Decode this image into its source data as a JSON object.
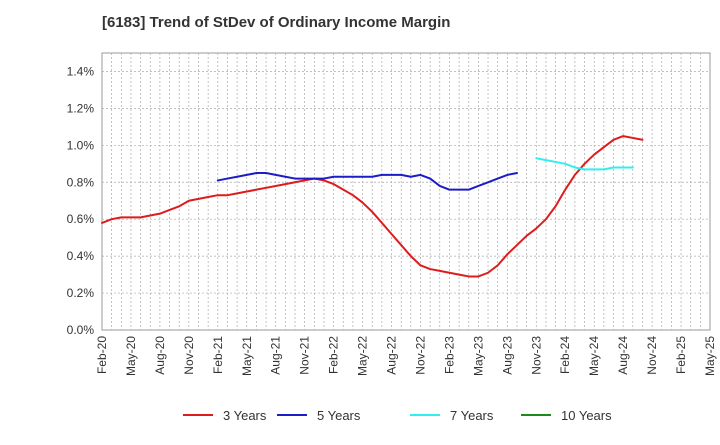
{
  "chart_data": {
    "type": "line",
    "title": "[6183]  Trend of StDev of Ordinary Income Margin",
    "xlabel": "",
    "ylabel": "",
    "x_tick_labels": [
      "Feb-20",
      "May-20",
      "Aug-20",
      "Nov-20",
      "Feb-21",
      "May-21",
      "Aug-21",
      "Nov-21",
      "Feb-22",
      "May-22",
      "Aug-22",
      "Nov-22",
      "Feb-23",
      "May-23",
      "Aug-23",
      "Nov-23",
      "Feb-24",
      "May-24",
      "Aug-24",
      "Nov-24",
      "Feb-25",
      "May-25"
    ],
    "y_tick_labels": [
      "0.0%",
      "0.2%",
      "0.4%",
      "0.6%",
      "0.8%",
      "1.0%",
      "1.2%",
      "1.4%"
    ],
    "ylim": [
      0,
      1.5
    ],
    "grid": true,
    "legend_position": "bottom",
    "series": [
      {
        "name": "3 Years",
        "color": "#dd1c1c",
        "start": "Feb-20",
        "values": [
          0.58,
          0.6,
          0.61,
          0.61,
          0.61,
          0.62,
          0.63,
          0.65,
          0.67,
          0.7,
          0.71,
          0.72,
          0.73,
          0.73,
          0.74,
          0.75,
          0.76,
          0.77,
          0.78,
          0.79,
          0.8,
          0.81,
          0.82,
          0.81,
          0.79,
          0.76,
          0.73,
          0.69,
          0.64,
          0.58,
          0.52,
          0.46,
          0.4,
          0.35,
          0.33,
          0.32,
          0.31,
          0.3,
          0.29,
          0.29,
          0.31,
          0.35,
          0.41,
          0.46,
          0.51,
          0.55,
          0.6,
          0.67,
          0.76,
          0.84,
          0.9,
          0.95,
          0.99,
          1.03,
          1.05,
          1.04,
          1.03
        ]
      },
      {
        "name": "5 Years",
        "color": "#1c1cc8",
        "start": "Feb-21",
        "values": [
          0.81,
          0.82,
          0.83,
          0.84,
          0.85,
          0.85,
          0.84,
          0.83,
          0.82,
          0.82,
          0.82,
          0.82,
          0.83,
          0.83,
          0.83,
          0.83,
          0.83,
          0.84,
          0.84,
          0.84,
          0.83,
          0.84,
          0.82,
          0.78,
          0.76,
          0.76,
          0.76,
          0.78,
          0.8,
          0.82,
          0.84,
          0.85
        ]
      },
      {
        "name": "7 Years",
        "color": "#33eeee",
        "start": "Nov-23",
        "values": [
          0.93,
          0.92,
          0.91,
          0.9,
          0.88,
          0.87,
          0.87,
          0.87,
          0.88,
          0.88,
          0.88
        ]
      },
      {
        "name": "10 Years",
        "color": "#1c8a1c",
        "start": "Feb-25",
        "values": []
      }
    ]
  }
}
